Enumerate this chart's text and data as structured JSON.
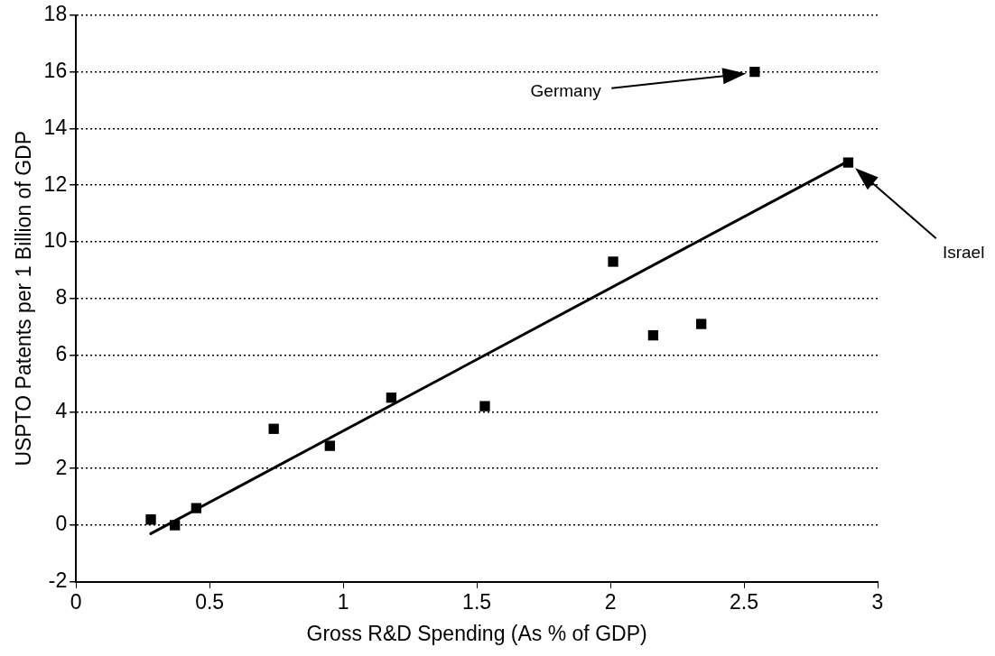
{
  "chart_data": {
    "type": "scatter",
    "xlabel": "Gross R&D Spending (As % of GDP)",
    "ylabel": "USPTO Patents per 1 Billion of GDP",
    "xlim": [
      0,
      3
    ],
    "xticks": [
      0,
      0.5,
      1,
      1.5,
      2,
      2.5,
      3
    ],
    "ylim": [
      -2,
      18
    ],
    "yticks": [
      -2,
      0,
      2,
      4,
      6,
      8,
      10,
      12,
      14,
      16,
      18
    ],
    "grid": "y",
    "legend": false,
    "series": [
      {
        "type": "scatter",
        "marker": "square",
        "color": "#000000",
        "x": [
          0.28,
          0.37,
          0.45,
          0.74,
          0.95,
          1.18,
          1.53,
          2.01,
          2.16,
          2.34,
          2.54,
          2.89
        ],
        "values": [
          0.2,
          0.0,
          0.6,
          3.4,
          2.8,
          4.5,
          4.2,
          9.3,
          6.7,
          7.1,
          16.0,
          12.8
        ]
      },
      {
        "type": "line",
        "marker": "none",
        "color": "#000000",
        "line_style": "solid",
        "x": [
          0.28,
          2.88
        ],
        "values": [
          -0.3,
          12.8
        ]
      }
    ],
    "annotations": [
      "Germany",
      "Israel"
    ]
  }
}
